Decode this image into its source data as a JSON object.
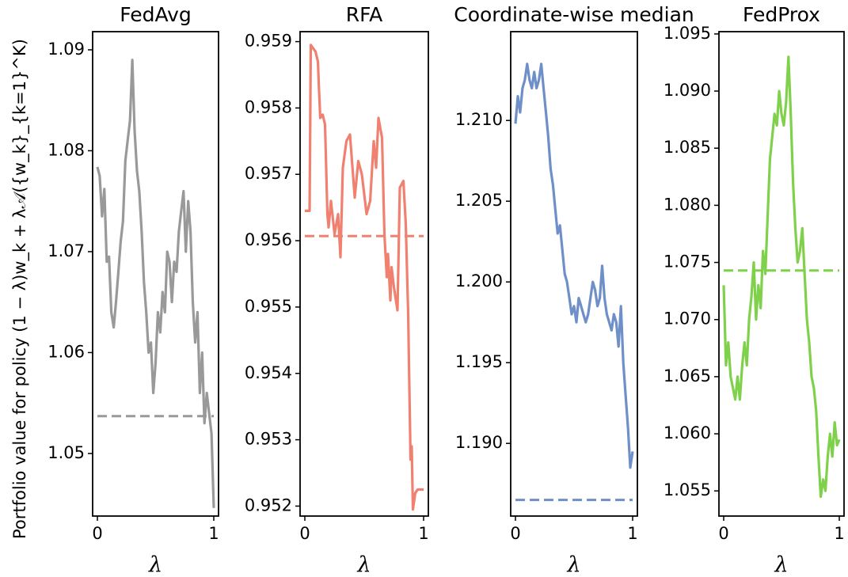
{
  "figure": {
    "ylabel": "Portfolio value for policy (1 − λ)w_k + λ𝒜({w_k}_{k=1}^K)"
  },
  "chart_data": [
    {
      "type": "line",
      "title": "FedAvg",
      "xlabel": "λ",
      "color": "#999999",
      "xlim": [
        0,
        1
      ],
      "ylim": [
        1.0438,
        1.0918
      ],
      "xticks": [
        0,
        1
      ],
      "yticks": [
        1.05,
        1.06,
        1.07,
        1.08,
        1.09
      ],
      "ytick_labels": [
        "1.05",
        "1.06",
        "1.07",
        "1.08",
        "1.09"
      ],
      "series": [
        {
          "style": "solid",
          "x": [
            0.0,
            0.02,
            0.04,
            0.06,
            0.08,
            0.1,
            0.12,
            0.14,
            0.16,
            0.18,
            0.2,
            0.22,
            0.24,
            0.26,
            0.28,
            0.3,
            0.32,
            0.34,
            0.36,
            0.38,
            0.4,
            0.42,
            0.44,
            0.46,
            0.48,
            0.5,
            0.52,
            0.54,
            0.56,
            0.58,
            0.6,
            0.62,
            0.64,
            0.66,
            0.68,
            0.7,
            0.72,
            0.74,
            0.76,
            0.78,
            0.8,
            0.82,
            0.84,
            0.86,
            0.88,
            0.9,
            0.92,
            0.94,
            0.96,
            0.98,
            1.0
          ],
          "y": [
            1.0784,
            1.0775,
            1.0735,
            1.0762,
            1.069,
            1.0695,
            1.064,
            1.0625,
            1.065,
            1.068,
            1.071,
            1.073,
            1.079,
            1.081,
            1.083,
            1.089,
            1.082,
            1.078,
            1.076,
            1.072,
            1.067,
            1.064,
            1.06,
            1.061,
            1.056,
            1.059,
            1.064,
            1.062,
            1.066,
            1.064,
            1.07,
            1.069,
            1.065,
            1.069,
            1.068,
            1.072,
            1.074,
            1.076,
            1.07,
            1.075,
            1.072,
            1.065,
            1.061,
            1.064,
            1.056,
            1.06,
            1.053,
            1.056,
            1.054,
            1.052,
            1.0446
          ]
        },
        {
          "style": "dashed",
          "x": [
            0.0,
            1.0
          ],
          "y": [
            1.0537,
            1.0537
          ]
        }
      ]
    },
    {
      "type": "line",
      "title": "RFA",
      "xlabel": "λ",
      "color": "#f08070",
      "xlim": [
        0,
        1
      ],
      "ylim": [
        0.95185,
        0.95915
      ],
      "xticks": [
        0,
        1
      ],
      "yticks": [
        0.952,
        0.953,
        0.954,
        0.955,
        0.956,
        0.957,
        0.958,
        0.959
      ],
      "ytick_labels": [
        "0.952",
        "0.953",
        "0.954",
        "0.955",
        "0.956",
        "0.957",
        "0.958",
        "0.959"
      ],
      "series": [
        {
          "style": "solid",
          "x": [
            0.0,
            0.04,
            0.05,
            0.07,
            0.09,
            0.11,
            0.12,
            0.13,
            0.15,
            0.17,
            0.19,
            0.2,
            0.22,
            0.25,
            0.28,
            0.3,
            0.32,
            0.35,
            0.38,
            0.42,
            0.45,
            0.48,
            0.52,
            0.55,
            0.58,
            0.6,
            0.62,
            0.65,
            0.67,
            0.69,
            0.7,
            0.72,
            0.73,
            0.75,
            0.78,
            0.8,
            0.83,
            0.85,
            0.87,
            0.89,
            0.9,
            0.91,
            0.93,
            0.95,
            1.0
          ],
          "y": [
            0.95645,
            0.95645,
            0.95895,
            0.9589,
            0.95885,
            0.9587,
            0.95825,
            0.95785,
            0.9579,
            0.95775,
            0.9564,
            0.9562,
            0.9566,
            0.9561,
            0.9564,
            0.95575,
            0.9571,
            0.9575,
            0.9576,
            0.95665,
            0.9572,
            0.957,
            0.9564,
            0.9566,
            0.9575,
            0.9571,
            0.95785,
            0.95755,
            0.9561,
            0.95545,
            0.9558,
            0.9551,
            0.9556,
            0.9553,
            0.95495,
            0.9568,
            0.9569,
            0.95625,
            0.9549,
            0.9527,
            0.9529,
            0.95195,
            0.9522,
            0.95225,
            0.95225
          ]
        },
        {
          "style": "dashed",
          "x": [
            0.0,
            1.0
          ],
          "y": [
            0.95607,
            0.95607
          ]
        }
      ]
    },
    {
      "type": "line",
      "title": "Coordinate-wise median",
      "xlabel": "λ",
      "color": "#6f8fc8",
      "xlim": [
        0,
        1
      ],
      "ylim": [
        1.1855,
        1.2155
      ],
      "xticks": [
        0,
        1
      ],
      "yticks": [
        1.19,
        1.195,
        1.2,
        1.205,
        1.21
      ],
      "ytick_labels": [
        "1.190",
        "1.195",
        "1.200",
        "1.205",
        "1.210"
      ],
      "series": [
        {
          "style": "solid",
          "x": [
            0.0,
            0.02,
            0.04,
            0.06,
            0.08,
            0.1,
            0.12,
            0.14,
            0.16,
            0.18,
            0.2,
            0.22,
            0.24,
            0.26,
            0.28,
            0.3,
            0.32,
            0.34,
            0.36,
            0.38,
            0.4,
            0.42,
            0.44,
            0.46,
            0.48,
            0.5,
            0.52,
            0.54,
            0.56,
            0.58,
            0.6,
            0.62,
            0.64,
            0.66,
            0.68,
            0.7,
            0.72,
            0.74,
            0.76,
            0.78,
            0.8,
            0.82,
            0.84,
            0.86,
            0.88,
            0.9,
            0.92,
            0.94,
            0.96,
            0.98,
            1.0
          ],
          "y": [
            1.2098,
            1.2115,
            1.2105,
            1.212,
            1.2125,
            1.2135,
            1.2125,
            1.212,
            1.213,
            1.212,
            1.2125,
            1.2135,
            1.212,
            1.2105,
            1.209,
            1.207,
            1.206,
            1.2045,
            1.203,
            1.2035,
            1.202,
            1.2005,
            1.2,
            1.199,
            1.198,
            1.1985,
            1.1975,
            1.199,
            1.1985,
            1.198,
            1.1975,
            1.198,
            1.199,
            1.2,
            1.1995,
            1.1985,
            1.199,
            1.201,
            1.199,
            1.198,
            1.1975,
            1.197,
            1.198,
            1.1975,
            1.196,
            1.1985,
            1.195,
            1.193,
            1.191,
            1.1885,
            1.1895
          ]
        },
        {
          "style": "dashed",
          "x": [
            0.0,
            1.0
          ],
          "y": [
            1.1865,
            1.1865
          ]
        }
      ]
    },
    {
      "type": "line",
      "title": "FedProx",
      "xlabel": "λ",
      "color": "#7fd04a",
      "xlim": [
        0,
        1
      ],
      "ylim": [
        1.0528,
        1.0952
      ],
      "xticks": [
        0,
        1
      ],
      "yticks": [
        1.055,
        1.06,
        1.065,
        1.07,
        1.075,
        1.08,
        1.085,
        1.09,
        1.095
      ],
      "ytick_labels": [
        "1.055",
        "1.060",
        "1.065",
        "1.070",
        "1.075",
        "1.080",
        "1.085",
        "1.090",
        "1.095"
      ],
      "series": [
        {
          "style": "solid",
          "x": [
            0.0,
            0.02,
            0.04,
            0.06,
            0.08,
            0.1,
            0.12,
            0.14,
            0.16,
            0.18,
            0.2,
            0.22,
            0.24,
            0.26,
            0.28,
            0.3,
            0.32,
            0.34,
            0.36,
            0.38,
            0.4,
            0.42,
            0.44,
            0.46,
            0.48,
            0.5,
            0.52,
            0.54,
            0.56,
            0.58,
            0.6,
            0.62,
            0.64,
            0.66,
            0.68,
            0.7,
            0.72,
            0.74,
            0.76,
            0.78,
            0.8,
            0.82,
            0.84,
            0.86,
            0.88,
            0.9,
            0.92,
            0.94,
            0.96,
            0.98,
            1.0
          ],
          "y": [
            1.073,
            1.066,
            1.068,
            1.065,
            1.064,
            1.063,
            1.065,
            1.063,
            1.066,
            1.068,
            1.066,
            1.07,
            1.072,
            1.075,
            1.07,
            1.073,
            1.071,
            1.076,
            1.074,
            1.079,
            1.084,
            1.086,
            1.088,
            1.087,
            1.09,
            1.088,
            1.087,
            1.089,
            1.093,
            1.088,
            1.082,
            1.078,
            1.075,
            1.076,
            1.078,
            1.074,
            1.07,
            1.068,
            1.065,
            1.064,
            1.062,
            1.058,
            1.0545,
            1.056,
            1.055,
            1.058,
            1.06,
            1.058,
            1.061,
            1.059,
            1.0595
          ]
        },
        {
          "style": "dashed",
          "x": [
            0.0,
            1.0
          ],
          "y": [
            1.0743,
            1.0743
          ]
        }
      ]
    }
  ]
}
